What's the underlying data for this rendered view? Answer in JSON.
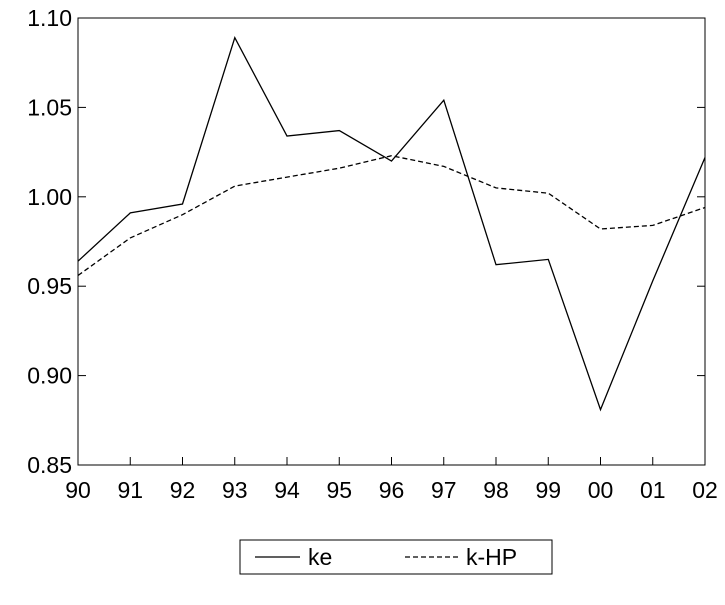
{
  "chart_data": {
    "type": "line",
    "categories": [
      "90",
      "91",
      "92",
      "93",
      "94",
      "95",
      "96",
      "97",
      "98",
      "99",
      "00",
      "01",
      "02"
    ],
    "ylim": [
      0.85,
      1.1
    ],
    "yticks": [
      "0.85",
      "0.90",
      "0.95",
      "1.00",
      "1.05",
      "1.10"
    ],
    "ytick_values": [
      0.85,
      0.9,
      0.95,
      1.0,
      1.05,
      1.1
    ],
    "grid": false,
    "legend_position": "bottom-center",
    "series": [
      {
        "name": "ke",
        "line_style": "solid",
        "color": "#000000",
        "values": [
          0.964,
          0.991,
          0.996,
          1.089,
          1.034,
          1.037,
          1.02,
          1.054,
          0.962,
          0.965,
          0.881,
          0.953,
          1.022
        ]
      },
      {
        "name": "k-HP",
        "line_style": "dashed",
        "color": "#000000",
        "values": [
          0.956,
          0.977,
          0.99,
          1.006,
          1.011,
          1.016,
          1.023,
          1.017,
          1.005,
          1.002,
          0.982,
          0.984,
          0.994
        ]
      }
    ]
  }
}
